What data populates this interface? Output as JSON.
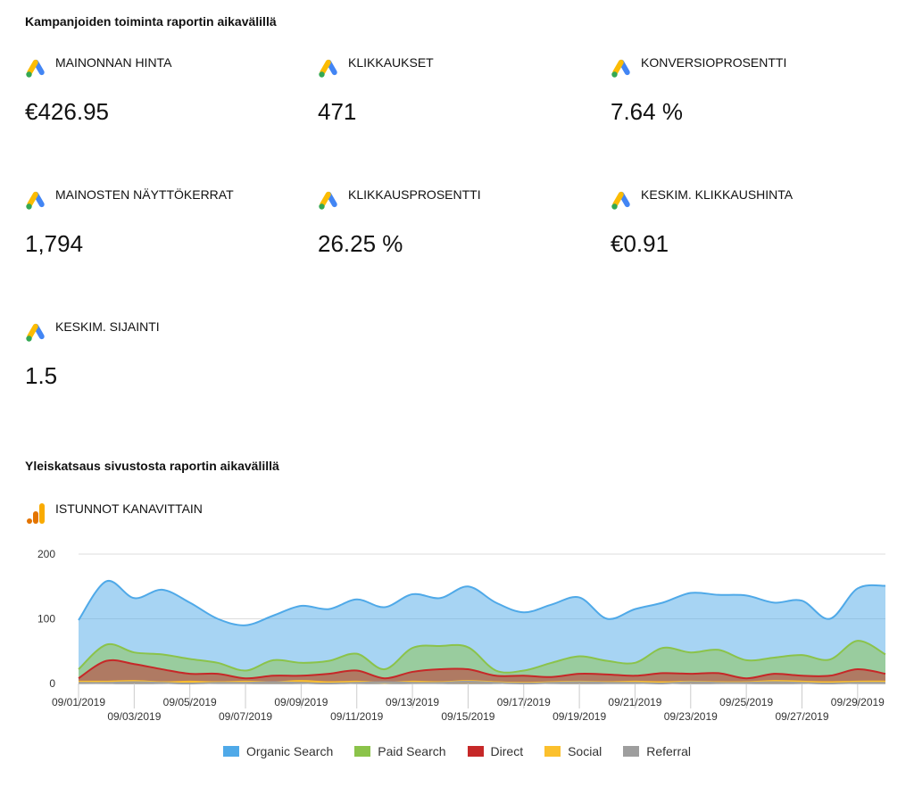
{
  "sections": {
    "campaign_title": "Kampanjoiden toiminta raportin aikavälillä",
    "site_title": "Yleiskatsaus sivustosta raportin aikavälillä",
    "channel_title": "ISTUNNOT KANAVITTAIN"
  },
  "metrics": [
    {
      "label": "MAINONNAN HINTA",
      "value": "€426.95",
      "icon": "google-ads-icon"
    },
    {
      "label": "KLIKKAUKSET",
      "value": "471",
      "icon": "google-ads-icon"
    },
    {
      "label": "KONVERSIOPROSENTTI",
      "value": "7.64 %",
      "icon": "google-ads-icon"
    },
    {
      "label": "MAINOSTEN NÄYTTÖKERRAT",
      "value": "1,794",
      "icon": "google-ads-icon"
    },
    {
      "label": "KLIKKAUSPROSENTTI",
      "value": "26.25 %",
      "icon": "google-ads-icon"
    },
    {
      "label": "KESKIM. KLIKKAUSHINTA",
      "value": "€0.91",
      "icon": "google-ads-icon"
    },
    {
      "label": "KESKIM. SIJAINTI",
      "value": "1.5",
      "icon": "google-ads-icon"
    }
  ],
  "colors": {
    "organic": "#4fa9e8",
    "paid": "#8bc34a",
    "direct": "#c62828",
    "social": "#fbc02d",
    "referral": "#9e9e9e"
  },
  "chart_data": {
    "type": "area",
    "x": [
      "09/01/2019",
      "09/02/2019",
      "09/03/2019",
      "09/04/2019",
      "09/05/2019",
      "09/06/2019",
      "09/07/2019",
      "09/08/2019",
      "09/09/2019",
      "09/10/2019",
      "09/11/2019",
      "09/12/2019",
      "09/13/2019",
      "09/14/2019",
      "09/15/2019",
      "09/16/2019",
      "09/17/2019",
      "09/18/2019",
      "09/19/2019",
      "09/20/2019",
      "09/21/2019",
      "09/22/2019",
      "09/23/2019",
      "09/24/2019",
      "09/25/2019",
      "09/26/2019",
      "09/27/2019",
      "09/28/2019",
      "09/29/2019",
      "09/30/2019"
    ],
    "x_tick_labels": [
      "09/01/2019",
      "09/03/2019",
      "09/05/2019",
      "09/07/2019",
      "09/09/2019",
      "09/11/2019",
      "09/13/2019",
      "09/15/2019",
      "09/17/2019",
      "09/19/2019",
      "09/21/2019",
      "09/23/2019",
      "09/25/2019",
      "09/27/2019",
      "09/29/2019"
    ],
    "ylim": [
      0,
      200
    ],
    "yticks": [
      0,
      100,
      200
    ],
    "series": [
      {
        "name": "Organic Search",
        "values": [
          98,
          158,
          132,
          145,
          125,
          100,
          90,
          105,
          120,
          115,
          130,
          118,
          138,
          132,
          150,
          125,
          110,
          122,
          133,
          100,
          115,
          125,
          140,
          137,
          136,
          125,
          128,
          100,
          147,
          151
        ]
      },
      {
        "name": "Paid Search",
        "values": [
          22,
          60,
          48,
          45,
          38,
          32,
          20,
          36,
          32,
          35,
          46,
          22,
          55,
          58,
          56,
          20,
          20,
          32,
          42,
          35,
          32,
          55,
          48,
          52,
          36,
          40,
          44,
          37,
          66,
          45
        ]
      },
      {
        "name": "Direct",
        "values": [
          8,
          35,
          30,
          22,
          15,
          15,
          8,
          12,
          12,
          15,
          20,
          8,
          18,
          22,
          22,
          12,
          12,
          10,
          15,
          14,
          12,
          16,
          15,
          16,
          8,
          15,
          12,
          12,
          22,
          15
        ]
      },
      {
        "name": "Social",
        "values": [
          3,
          3,
          4,
          2,
          3,
          2,
          3,
          2,
          4,
          2,
          3,
          1,
          3,
          2,
          4,
          2,
          1,
          2,
          3,
          2,
          3,
          2,
          3,
          2,
          2,
          4,
          3,
          2,
          3,
          3
        ]
      },
      {
        "name": "Referral",
        "values": [
          1,
          1,
          2,
          1,
          0,
          1,
          1,
          2,
          1,
          0,
          1,
          2,
          1,
          1,
          3,
          1,
          0,
          1,
          2,
          1,
          1,
          0,
          2,
          1,
          1,
          2,
          1,
          0,
          1,
          1
        ]
      }
    ],
    "legend_position": "bottom",
    "grid": true
  }
}
